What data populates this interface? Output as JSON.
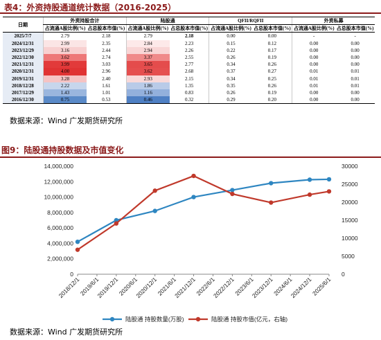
{
  "table4": {
    "title": "表4：外资持股通道统计数据（2016-2025）",
    "group_headers": {
      "foreign_total": "外资持股合计",
      "northbound": "陆股通",
      "qfii": "QFII/RQFII",
      "private": "外资私募"
    },
    "date_header": "日期",
    "sub_headers": [
      "占流通A股比例(%)",
      "占总股本市值(%)",
      "占流通A股比例(%)",
      "占总股本市值(%)",
      "占流通A股比例(%)",
      "占总股本市值(%)",
      "占流通A股比例(%)",
      "占总股本市值(%)"
    ],
    "rows": [
      {
        "date": "2025/7/7",
        "v": [
          "2.79",
          "2.18",
          "2.79",
          "2.18",
          "0.00",
          "0.00",
          "-",
          "-"
        ],
        "c1": "#ffffff",
        "c3": "#ffffff",
        "bold4": true
      },
      {
        "date": "2024/12/31",
        "v": [
          "2.99",
          "2.35",
          "2.84",
          "2.23",
          "0.15",
          "0.12",
          "0.00",
          "0.00"
        ],
        "c1": "#fbe5e5",
        "c3": "#fde9e9",
        "bold4": false
      },
      {
        "date": "2023/12/29",
        "v": [
          "3.16",
          "2.44",
          "2.94",
          "2.26",
          "0.22",
          "0.17",
          "0.00",
          "0.00"
        ],
        "c1": "#f8d0d0",
        "c3": "#f9d6d6",
        "bold4": false
      },
      {
        "date": "2022/12/30",
        "v": [
          "3.62",
          "2.74",
          "3.37",
          "2.55",
          "0.26",
          "0.19",
          "0.00",
          "0.00"
        ],
        "c1": "#ee7878",
        "c3": "#f08a8a",
        "bold4": false
      },
      {
        "date": "2021/12/31",
        "v": [
          "3.99",
          "3.03",
          "3.65",
          "2.77",
          "0.34",
          "0.26",
          "0.00",
          "0.00"
        ],
        "c1": "#e23a3a",
        "c3": "#e44c4c",
        "bold4": false
      },
      {
        "date": "2020/12/31",
        "v": [
          "4.00",
          "2.96",
          "3.62",
          "2.68",
          "0.37",
          "0.27",
          "0.01",
          "0.01"
        ],
        "c1": "#e03333",
        "c3": "#e54f4f",
        "bold4": false
      },
      {
        "date": "2019/12/31",
        "v": [
          "3.28",
          "2.40",
          "2.93",
          "2.15",
          "0.34",
          "0.25",
          "0.01",
          "0.01"
        ],
        "c1": "#f6c3c3",
        "c3": "#f9d9d9",
        "bold4": false
      },
      {
        "date": "2018/12/28",
        "v": [
          "2.22",
          "1.61",
          "1.86",
          "1.35",
          "0.35",
          "0.26",
          "0.01",
          "0.01"
        ],
        "c1": "#c7d6ec",
        "c3": "#b9cbe8",
        "bold4": false
      },
      {
        "date": "2017/12/29",
        "v": [
          "1.43",
          "1.01",
          "1.16",
          "0.83",
          "0.26",
          "0.19",
          "0.00",
          "0.00"
        ],
        "c1": "#9ab6de",
        "c3": "#93b0dc",
        "bold4": false
      },
      {
        "date": "2016/12/30",
        "v": [
          "0.75",
          "0.53",
          "0.46",
          "0.32",
          "0.29",
          "0.20",
          "0.00",
          "0.00"
        ],
        "c1": "#5a8ac8",
        "c3": "#4f80c4",
        "bold4": false
      }
    ],
    "source": "数据来源：Wind 广发期货研究所"
  },
  "figure9": {
    "title": "图9：陆股通持股数据及市值变化",
    "source": "数据来源：Wind 广发期货研究所"
  },
  "chart_data": {
    "type": "line",
    "categories": [
      "2018/12/1",
      "2019/6/1",
      "2019/12/1",
      "2020/6/1",
      "2020/12/1",
      "2021/6/1",
      "2021/12/1",
      "2022/6/1",
      "2022/12/1",
      "2023/6/1",
      "2023/12/1",
      "2024/6/1",
      "2024/12/1",
      "2025/6/1"
    ],
    "series": [
      {
        "name": "陆股通 持股数量(万股)",
        "axis": "left",
        "color": "#2e86c1",
        "points": [
          [
            "2018/12/1",
            4200000
          ],
          [
            "2019/12/1",
            7000000
          ],
          [
            "2020/12/1",
            8200000
          ],
          [
            "2021/12/1",
            10000000
          ],
          [
            "2022/12/1",
            10900000
          ],
          [
            "2023/12/1",
            11800000
          ],
          [
            "2024/12/1",
            12250000
          ],
          [
            "2025/6/1",
            12300000
          ]
        ]
      },
      {
        "name": "陆股通 持股市值(亿元，右轴)",
        "axis": "right",
        "color": "#c0392b",
        "points": [
          [
            "2018/12/1",
            6800
          ],
          [
            "2019/12/1",
            14100
          ],
          [
            "2020/12/1",
            23200
          ],
          [
            "2021/12/1",
            27300
          ],
          [
            "2022/12/1",
            22300
          ],
          [
            "2023/12/1",
            19900
          ],
          [
            "2024/12/1",
            22100
          ],
          [
            "2025/6/1",
            23000
          ]
        ]
      }
    ],
    "y_left": {
      "ticks": [
        "0",
        "2,000,000",
        "4,000,000",
        "6,000,000",
        "8,000,000",
        "10,000,000",
        "12,000,000",
        "14,000,000"
      ],
      "range": [
        0,
        14000000
      ]
    },
    "y_right": {
      "ticks": [
        "0",
        "5000",
        "10000",
        "15000",
        "20000",
        "25000",
        "30000"
      ],
      "range": [
        0,
        30000
      ]
    },
    "grid": false,
    "legend": "bottom"
  }
}
